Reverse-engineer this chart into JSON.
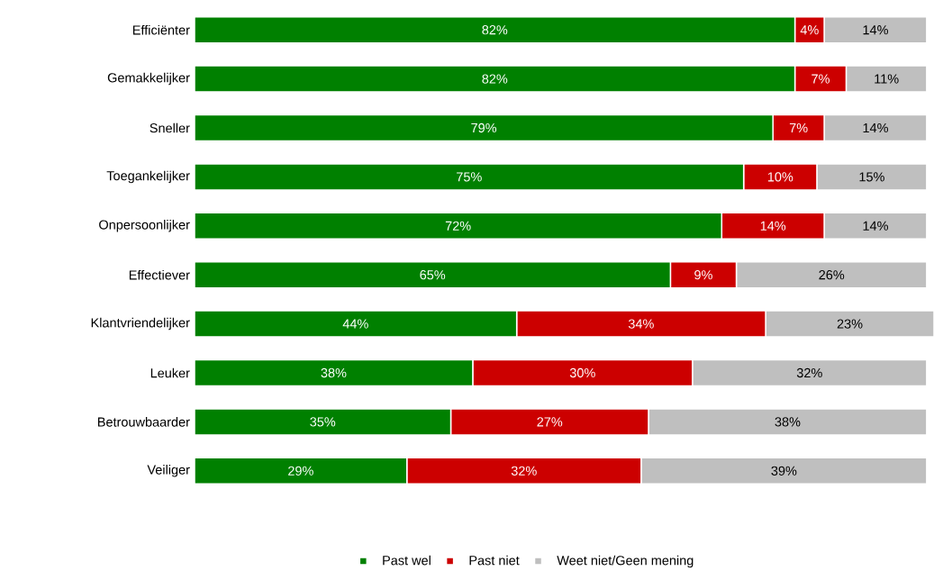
{
  "chart_data": {
    "type": "bar",
    "orientation": "horizontal",
    "stacked": true,
    "legend": "bottom",
    "categories": [
      "Efficiënter",
      "Gemakkelijker",
      "Sneller",
      "Toegankelijker",
      "Onpersoonlijker",
      "Effectiever",
      "Klantvriendelijker",
      "Leuker",
      "Betrouwbaarder",
      "Veiliger"
    ],
    "series": [
      {
        "name": "Past wel",
        "color": "#008000",
        "values": [
          82,
          82,
          79,
          75,
          72,
          65,
          44,
          38,
          35,
          29
        ],
        "value_labels": [
          "82%",
          "82%",
          "79%",
          "75%",
          "72%",
          "65%",
          "44%",
          "38%",
          "35%",
          "29%"
        ]
      },
      {
        "name": "Past niet",
        "color": "#cc0000",
        "values": [
          4,
          7,
          7,
          10,
          14,
          9,
          34,
          30,
          27,
          32
        ],
        "value_labels": [
          "4%",
          "7%",
          "7%",
          "10%",
          "14%",
          "9%",
          "34%",
          "30%",
          "27%",
          "32%"
        ]
      },
      {
        "name": "Weet niet/Geen mening",
        "color": "#bfbfbf",
        "values": [
          14,
          11,
          14,
          15,
          14,
          26,
          23,
          32,
          38,
          39
        ],
        "value_labels": [
          "14%",
          "11%",
          "14%",
          "15%",
          "14%",
          "26%",
          "23%",
          "32%",
          "38%",
          "39%"
        ]
      }
    ]
  }
}
